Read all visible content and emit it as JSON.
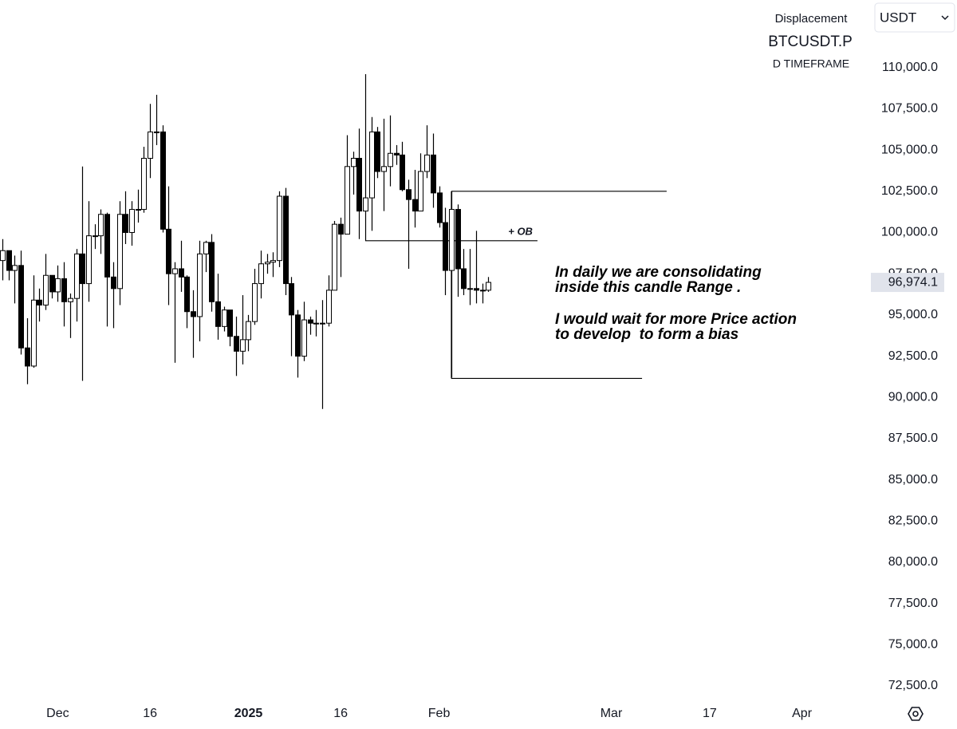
{
  "chart_data": {
    "type": "candlestick",
    "title": "Displacement",
    "symbol": "BTCUSDT.P",
    "subtitle": "D TIMEFRAME",
    "currency": "USDT",
    "up_color": "#ffffff",
    "down_color": "#000000",
    "border_color": "#000000",
    "candles": {
      "x": [
        "2024-11-22",
        "2024-11-23",
        "2024-11-24",
        "2024-11-25",
        "2024-11-26",
        "2024-11-27",
        "2024-11-28",
        "2024-11-29",
        "2024-11-30",
        "2024-12-01",
        "2024-12-02",
        "2024-12-03",
        "2024-12-04",
        "2024-12-05",
        "2024-12-06",
        "2024-12-07",
        "2024-12-08",
        "2024-12-09",
        "2024-12-10",
        "2024-12-11",
        "2024-12-12",
        "2024-12-13",
        "2024-12-14",
        "2024-12-15",
        "2024-12-16",
        "2024-12-17",
        "2024-12-18",
        "2024-12-19",
        "2024-12-20",
        "2024-12-21",
        "2024-12-22",
        "2024-12-23",
        "2024-12-24",
        "2024-12-25",
        "2024-12-26",
        "2024-12-27",
        "2024-12-28",
        "2024-12-29",
        "2024-12-30",
        "2024-12-31",
        "2025-01-01",
        "2025-01-02",
        "2025-01-03",
        "2025-01-04",
        "2025-01-05",
        "2025-01-06",
        "2025-01-07",
        "2025-01-08",
        "2025-01-09",
        "2025-01-10",
        "2025-01-11",
        "2025-01-12",
        "2025-01-13",
        "2025-01-14",
        "2025-01-15",
        "2025-01-16",
        "2025-01-17",
        "2025-01-18",
        "2025-01-19",
        "2025-01-20",
        "2025-01-21",
        "2025-01-22",
        "2025-01-23",
        "2025-01-24",
        "2025-01-25",
        "2025-01-26",
        "2025-01-27",
        "2025-01-28",
        "2025-01-29",
        "2025-01-30",
        "2025-01-31",
        "2025-02-01",
        "2025-02-02",
        "2025-02-03",
        "2025-02-04",
        "2025-02-05",
        "2025-02-06",
        "2025-02-07",
        "2025-02-08",
        "2025-02-09"
      ],
      "open": [
        98300,
        98900,
        97700,
        98000,
        93000,
        91900,
        95900,
        95600,
        97400,
        96400,
        97200,
        95800,
        96000,
        98700,
        96900,
        99800,
        99800,
        101100,
        97300,
        96600,
        101100,
        100000,
        101400,
        101400,
        104500,
        106100,
        106100,
        100200,
        97500,
        97800,
        97300,
        95200,
        94900,
        98700,
        99400,
        95800,
        94300,
        95300,
        93700,
        92800,
        93500,
        94600,
        96900,
        98100,
        98200,
        98300,
        102200,
        96900,
        95000,
        92500,
        94700,
        94500,
        94500,
        94500,
        96500,
        100500,
        99900,
        104000,
        104500,
        101300,
        102100,
        106100,
        103700,
        104000,
        104800,
        104700,
        102600,
        102000,
        101300,
        103700,
        104700,
        102400,
        100600,
        97700,
        101400,
        97800,
        96600,
        96600,
        96500,
        96500
      ],
      "high": [
        99600,
        98900,
        98600,
        98900,
        94800,
        97400,
        96600,
        98700,
        97400,
        98000,
        98200,
        96300,
        99000,
        104000,
        101900,
        100500,
        101400,
        101200,
        98200,
        101900,
        102500,
        101900,
        102600,
        105200,
        107800,
        108350,
        106500,
        102800,
        98200,
        99500,
        97400,
        96500,
        99500,
        99500,
        99900,
        97500,
        95500,
        95300,
        94900,
        96200,
        95000,
        97800,
        98900,
        98700,
        98800,
        102500,
        102700,
        97300,
        95300,
        95800,
        94900,
        95300,
        95900,
        97400,
        100700,
        100900,
        105900,
        104900,
        106300,
        109600,
        107000,
        106400,
        106900,
        107100,
        105300,
        105500,
        103200,
        103800,
        104800,
        106500,
        106000,
        102800,
        101500,
        102500,
        101700,
        99000,
        99000,
        100100,
        96900,
        97300
      ],
      "low": [
        97100,
        97100,
        95700,
        92600,
        90800,
        91800,
        94600,
        95300,
        96000,
        95800,
        94300,
        93600,
        94600,
        91000,
        95800,
        99000,
        98700,
        94300,
        94200,
        95600,
        99300,
        99200,
        100600,
        101200,
        103300,
        105300,
        100000,
        95600,
        92100,
        96400,
        94200,
        92400,
        93400,
        97600,
        95200,
        93500,
        94000,
        93100,
        91300,
        92000,
        92800,
        94400,
        96000,
        97500,
        97300,
        97900,
        96200,
        92500,
        91200,
        92200,
        93800,
        93700,
        89300,
        94300,
        96500,
        97300,
        99900,
        102300,
        99600,
        99500,
        100100,
        103300,
        101300,
        102800,
        104100,
        102500,
        97800,
        100300,
        101300,
        103300,
        101500,
        100300,
        96200,
        91200,
        96100,
        96200,
        95600,
        95700,
        95700,
        96400
      ],
      "close": [
        98900,
        97700,
        98000,
        93000,
        91900,
        95900,
        95600,
        97400,
        96400,
        97200,
        95800,
        96000,
        98700,
        96900,
        99800,
        99800,
        101100,
        97300,
        96600,
        101100,
        100000,
        101400,
        101400,
        104500,
        106100,
        106100,
        100200,
        97500,
        97800,
        97300,
        95200,
        94900,
        98700,
        99400,
        95800,
        94300,
        95300,
        93700,
        92800,
        93500,
        94600,
        96900,
        98100,
        98200,
        98300,
        102200,
        96900,
        95000,
        92500,
        94700,
        94500,
        94500,
        94500,
        96500,
        100500,
        99900,
        104000,
        104500,
        101300,
        102100,
        106100,
        103700,
        104000,
        104800,
        104700,
        102600,
        102000,
        101300,
        103700,
        104700,
        102400,
        100600,
        97700,
        101400,
        97800,
        96600,
        96600,
        96500,
        96500,
        96974.1
      ]
    },
    "last_price": {
      "value": 96974.1,
      "label": "96,974.1"
    },
    "xlim": [
      "2024-11-22",
      "2025-04-10"
    ],
    "xticks": [
      {
        "value": "2024-12-01",
        "label": "Dec"
      },
      {
        "value": "2024-12-16",
        "label": "16"
      },
      {
        "value": "2025-01-01",
        "label": "2025"
      },
      {
        "value": "2025-01-16",
        "label": "16"
      },
      {
        "value": "2025-02-01",
        "label": "Feb"
      },
      {
        "value": "2025-03-01",
        "label": "Mar"
      },
      {
        "value": "2025-03-17",
        "label": "17"
      },
      {
        "value": "2025-04-01",
        "label": "Apr"
      }
    ],
    "ylim": [
      71630,
      114100
    ],
    "yticks": [
      {
        "value": 72500,
        "label": "72,500.0"
      },
      {
        "value": 75000,
        "label": "75,000.0"
      },
      {
        "value": 77500,
        "label": "77,500.0"
      },
      {
        "value": 80000,
        "label": "80,000.0"
      },
      {
        "value": 82500,
        "label": "82,500.0"
      },
      {
        "value": 85000,
        "label": "85,000.0"
      },
      {
        "value": 87500,
        "label": "87,500.0"
      },
      {
        "value": 90000,
        "label": "90,000.0"
      },
      {
        "value": 92500,
        "label": "92,500.0"
      },
      {
        "value": 95000,
        "label": "95,000.0"
      },
      {
        "value": 97500,
        "label": "97,500.0"
      },
      {
        "value": 100000,
        "label": "100,000.0"
      },
      {
        "value": 102500,
        "label": "102,500.0"
      },
      {
        "value": 105000,
        "label": "105,000.0"
      },
      {
        "value": 107500,
        "label": "107,500.0"
      },
      {
        "value": 110000,
        "label": "110,000.0"
      }
    ],
    "levels": [
      {
        "value": 102500,
        "start": "2025-02-03",
        "end": "2025-03-10"
      },
      {
        "value": 91150,
        "start": "2025-02-03",
        "end": "2025-03-06"
      },
      {
        "value": 99500,
        "start": "2025-01-20",
        "end": "2025-02-17"
      }
    ],
    "level_label": "+ OB",
    "note": [
      "In daily we are consolidating",
      "inside this candle Range .",
      "I would wait for more Price action",
      "to develop  to form a bias"
    ]
  }
}
